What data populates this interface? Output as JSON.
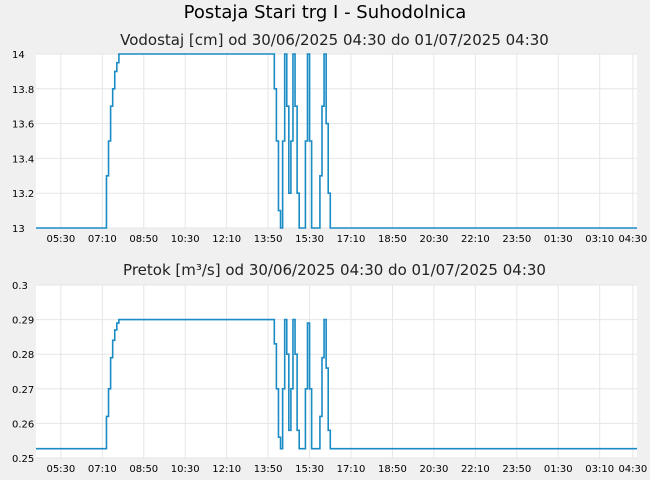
{
  "page": {
    "title": "Postaja Stari trg I - Suhodolnica"
  },
  "colors": {
    "line": "#1a8bc4",
    "grid": "#e6e6e6",
    "plot_bg": "#ffffff",
    "page_bg": "#f0f0f0"
  },
  "chart_data": [
    {
      "type": "line",
      "title": "Vodostaj [cm] od 30/06/2025 04:30 do 01/07/2025 04:30",
      "xlabel": "",
      "ylabel": "",
      "x_unit": "minutes since 00:00 on 30/06/2025",
      "xlim": [
        270,
        1720
      ],
      "ylim": [
        13,
        14
      ],
      "yticks": [
        "13",
        "13.2",
        "13.4",
        "13.6",
        "13.8",
        "14"
      ],
      "yticks_values": [
        13,
        13.2,
        13.4,
        13.6,
        13.8,
        14
      ],
      "xticks": [
        "05:30",
        "07:10",
        "08:50",
        "10:30",
        "12:10",
        "13:50",
        "15:30",
        "17:10",
        "18:50",
        "20:30",
        "22:10",
        "23:50",
        "01:30",
        "03:10",
        "04:30"
      ],
      "xticks_values": [
        330,
        430,
        530,
        630,
        730,
        830,
        930,
        1030,
        1130,
        1230,
        1330,
        1430,
        1530,
        1630,
        1710
      ],
      "grid": true,
      "series": [
        {
          "name": "",
          "x": [
            270,
            440,
            440,
            445,
            445,
            450,
            450,
            455,
            455,
            460,
            460,
            465,
            465,
            470,
            470,
            845,
            845,
            850,
            850,
            855,
            855,
            860,
            860,
            865,
            865,
            870,
            870,
            875,
            875,
            880,
            880,
            885,
            885,
            890,
            890,
            895,
            895,
            900,
            900,
            905,
            905,
            910,
            910,
            915,
            915,
            920,
            920,
            925,
            925,
            930,
            930,
            935,
            935,
            940,
            940,
            945,
            945,
            950,
            950,
            955,
            955,
            960,
            960,
            965,
            965,
            970,
            970,
            975,
            975,
            980,
            980,
            985,
            985,
            990,
            990,
            1720
          ],
          "y": [
            13,
            13,
            13.3,
            13.3,
            13.5,
            13.5,
            13.7,
            13.7,
            13.8,
            13.8,
            13.9,
            13.9,
            13.95,
            13.95,
            14,
            14,
            13.8,
            13.8,
            13.5,
            13.5,
            13.1,
            13.1,
            13,
            13,
            13.5,
            13.5,
            14,
            14,
            13.7,
            13.7,
            13.2,
            13.2,
            13.5,
            13.5,
            14,
            14,
            13.7,
            13.7,
            13.2,
            13.2,
            13,
            13,
            13,
            13,
            13,
            13,
            13.5,
            13.5,
            14,
            14,
            13.5,
            13.5,
            13,
            13,
            13,
            13,
            13,
            13,
            13,
            13,
            13.3,
            13.3,
            13.7,
            13.7,
            14,
            14,
            13.6,
            13.6,
            13.2,
            13.2,
            13,
            13,
            13,
            13,
            13,
            13
          ]
        }
      ]
    },
    {
      "type": "line",
      "title": "Pretok [m³/s] od 30/06/2025 04:30 do 01/07/2025 04:30",
      "xlabel": "",
      "ylabel": "",
      "x_unit": "minutes since 00:00 on 30/06/2025",
      "xlim": [
        270,
        1720
      ],
      "ylim": [
        0.25,
        0.3
      ],
      "yticks": [
        "0.25",
        "0.26",
        "0.27",
        "0.28",
        "0.29",
        "0.3"
      ],
      "yticks_values": [
        0.25,
        0.26,
        0.27,
        0.28,
        0.29,
        0.3
      ],
      "xticks": [
        "05:30",
        "07:10",
        "08:50",
        "10:30",
        "12:10",
        "13:50",
        "15:30",
        "17:10",
        "18:50",
        "20:30",
        "22:10",
        "23:50",
        "01:30",
        "03:10",
        "04:30"
      ],
      "xticks_values": [
        330,
        430,
        530,
        630,
        730,
        830,
        930,
        1030,
        1130,
        1230,
        1330,
        1430,
        1530,
        1630,
        1710
      ],
      "grid": true,
      "series": [
        {
          "name": "",
          "x": [
            270,
            440,
            440,
            445,
            445,
            450,
            450,
            455,
            455,
            460,
            460,
            465,
            465,
            470,
            470,
            845,
            845,
            850,
            850,
            855,
            855,
            860,
            860,
            865,
            865,
            870,
            870,
            875,
            875,
            880,
            880,
            885,
            885,
            890,
            890,
            895,
            895,
            900,
            900,
            905,
            905,
            910,
            910,
            915,
            915,
            920,
            920,
            925,
            925,
            930,
            930,
            935,
            935,
            940,
            940,
            945,
            945,
            950,
            950,
            955,
            955,
            960,
            960,
            965,
            965,
            970,
            970,
            975,
            975,
            980,
            980,
            985,
            985,
            990,
            990,
            1720
          ],
          "y": [
            0.2527,
            0.2527,
            0.262,
            0.262,
            0.27,
            0.27,
            0.279,
            0.279,
            0.284,
            0.284,
            0.287,
            0.287,
            0.289,
            0.289,
            0.29,
            0.29,
            0.283,
            0.283,
            0.27,
            0.27,
            0.256,
            0.256,
            0.2527,
            0.2527,
            0.27,
            0.27,
            0.29,
            0.29,
            0.28,
            0.28,
            0.258,
            0.258,
            0.27,
            0.27,
            0.29,
            0.29,
            0.28,
            0.28,
            0.258,
            0.258,
            0.2527,
            0.2527,
            0.2527,
            0.2527,
            0.2527,
            0.2527,
            0.27,
            0.27,
            0.289,
            0.289,
            0.27,
            0.27,
            0.2527,
            0.2527,
            0.2527,
            0.2527,
            0.2527,
            0.2527,
            0.2527,
            0.2527,
            0.262,
            0.262,
            0.279,
            0.279,
            0.29,
            0.29,
            0.276,
            0.276,
            0.258,
            0.258,
            0.2527,
            0.2527,
            0.2527,
            0.2527,
            0.2527,
            0.2527
          ]
        }
      ]
    }
  ]
}
